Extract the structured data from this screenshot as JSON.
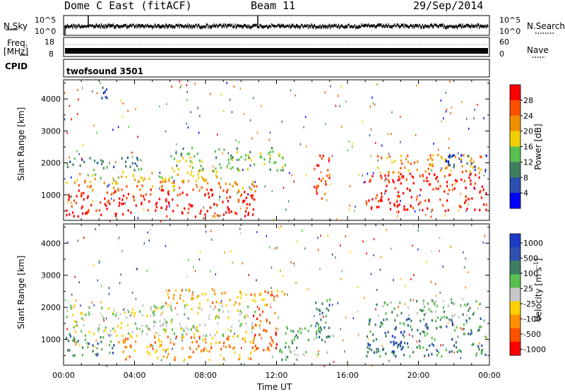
{
  "header": {
    "station": "Dome C East (fitACF)",
    "beam": "Beam 11",
    "date": "29/Sep/2014"
  },
  "noise_panel": {
    "left_label": "N.Sky",
    "right_label": "N.Search",
    "left_ticks": [
      "10^5",
      "10^0"
    ],
    "right_ticks": [
      "10^5",
      "10^0"
    ]
  },
  "freq_panel": {
    "left_label_1": "Freq.",
    "left_label_2": "[MHz]",
    "right_label": "Nave",
    "left_ticks": [
      "18",
      "8"
    ],
    "right_ticks": [
      "60",
      "0"
    ]
  },
  "cpid_panel": {
    "label": "CPID",
    "value": "twofsound 3501"
  },
  "colors": {
    "power_scale": [
      "#0000ff",
      "#2d4fb0",
      "#3f8060",
      "#58c050",
      "#f0d000",
      "#f09000",
      "#ff5000",
      "#ff0000"
    ],
    "velocity_scale": [
      "#1c3cc8",
      "#3050b0",
      "#3e7e62",
      "#58c050",
      "#c8c8c8",
      "#ffd000",
      "#ff9000",
      "#ff5000",
      "#ff0000"
    ]
  },
  "chart_data": [
    {
      "type": "heatmap",
      "name": "power",
      "ylabel": "Slant Range [km]",
      "xlabel": "",
      "y_ticks": [
        "1000",
        "2000",
        "3000",
        "4000"
      ],
      "ylim": [
        200,
        4600
      ],
      "xlim": [
        0,
        24
      ],
      "colorbar_label": "Power [dB]",
      "colorbar_ticks": [
        "4",
        "8",
        "12",
        "16",
        "20",
        "24",
        "28"
      ],
      "colorbar_range": [
        0,
        30
      ],
      "regions": [
        {
          "t0": 0.1,
          "t1": 10.8,
          "r0": 350,
          "r1": 1200,
          "level": 7
        },
        {
          "t0": 0.1,
          "t1": 11.0,
          "r0": 1150,
          "r1": 1450,
          "level": 5
        },
        {
          "t0": 0.1,
          "t1": 8.8,
          "r0": 1450,
          "r1": 1800,
          "level": 4
        },
        {
          "t0": 0.1,
          "t1": 4.5,
          "r0": 1800,
          "r1": 2200,
          "level": 2
        },
        {
          "t0": 6.0,
          "t1": 12.5,
          "r0": 1800,
          "r1": 2500,
          "level": 3
        },
        {
          "t0": 14.0,
          "t1": 15.0,
          "r0": 900,
          "r1": 2300,
          "level": 6
        },
        {
          "t0": 17.0,
          "t1": 23.8,
          "r0": 500,
          "r1": 1700,
          "level": 7
        },
        {
          "t0": 17.5,
          "t1": 23.5,
          "r0": 1700,
          "r1": 2300,
          "level": 5
        },
        {
          "t0": 21.5,
          "t1": 23.9,
          "r0": 1800,
          "r1": 2300,
          "level": 1
        },
        {
          "t0": 2.0,
          "t1": 3.0,
          "r0": 4000,
          "r1": 4400,
          "level": 1
        }
      ]
    },
    {
      "type": "heatmap",
      "name": "velocity",
      "ylabel": "Slant Range [km]",
      "xlabel": "Time UT",
      "x_ticks": [
        "00:00",
        "04:00",
        "08:00",
        "12:00",
        "16:00",
        "20:00",
        "00:00"
      ],
      "y_ticks": [
        "1000",
        "2000",
        "3000",
        "4000"
      ],
      "ylim": [
        200,
        4600
      ],
      "xlim": [
        0,
        24
      ],
      "colorbar_label": "Velocity [m s^-1]",
      "colorbar_ticks": [
        "1000",
        "500",
        "100",
        "25",
        "-25",
        "-100",
        "-500",
        "-1000"
      ],
      "colorbar_range": [
        -1000,
        1000
      ],
      "regions": [
        {
          "t0": 0.1,
          "t1": 3.0,
          "r0": 500,
          "r1": 1200,
          "level": 2
        },
        {
          "t0": 3.0,
          "t1": 11.0,
          "r0": 400,
          "r1": 1150,
          "level": 6
        },
        {
          "t0": 0.1,
          "t1": 11.0,
          "r0": 1150,
          "r1": 2100,
          "level": 4
        },
        {
          "t0": 10.5,
          "t1": 12.0,
          "r0": 700,
          "r1": 2000,
          "level": 7
        },
        {
          "t0": 12.0,
          "t1": 14.5,
          "r0": 400,
          "r1": 1500,
          "level": 3
        },
        {
          "t0": 14.0,
          "t1": 15.0,
          "r0": 800,
          "r1": 2300,
          "level": 2
        },
        {
          "t0": 17.0,
          "t1": 23.8,
          "r0": 500,
          "r1": 1700,
          "level": 2
        },
        {
          "t0": 17.5,
          "t1": 23.5,
          "r0": 1700,
          "r1": 2300,
          "level": 3
        },
        {
          "t0": 18.5,
          "t1": 19.5,
          "r0": 600,
          "r1": 1500,
          "level": 1
        },
        {
          "t0": 5.5,
          "t1": 12.5,
          "r0": 2100,
          "r1": 2600,
          "level": 6
        }
      ]
    }
  ]
}
